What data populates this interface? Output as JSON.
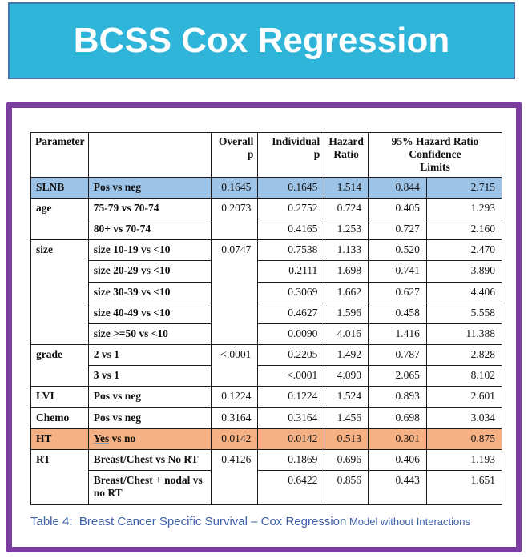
{
  "banner": {
    "title": "BCSS Cox Regression",
    "bg_color": "#2FB5D9",
    "text_color": "#FFFFFF"
  },
  "frame": {
    "border_color": "#7B3DA0"
  },
  "colors": {
    "highlight_blue": "#9DC3E6",
    "highlight_orange": "#F5B183",
    "caption_blue": "#3D5FA9"
  },
  "table": {
    "header": [
      {
        "name": "parameter",
        "label": "Parameter",
        "align": "left"
      },
      {
        "name": "contrast",
        "label": "",
        "align": "left"
      },
      {
        "name": "overall-p",
        "label": "Overall\np",
        "align": "right"
      },
      {
        "name": "individual-p",
        "label": "Individual\np",
        "align": "right"
      },
      {
        "name": "hazard-ratio",
        "label": "Hazard\nRatio",
        "align": "center"
      },
      {
        "name": "ci-limits",
        "label": "95% Hazard Ratio\nConfidence\nLimits",
        "align": "center",
        "colspan": 2
      }
    ],
    "groups": [
      {
        "parameter": "SLNB",
        "overall_p": "0.1645",
        "highlight": "#9DC3E6",
        "rows": [
          {
            "contrast": "Pos vs neg",
            "individual_p": "0.1645",
            "hazard_ratio": "1.514",
            "ci_lower": "0.844",
            "ci_upper": "2.715"
          }
        ]
      },
      {
        "parameter": "age",
        "overall_p": "0.2073",
        "rows": [
          {
            "contrast": "75-79 vs 70-74",
            "individual_p": "0.2752",
            "hazard_ratio": "0.724",
            "ci_lower": "0.405",
            "ci_upper": "1.293"
          },
          {
            "contrast": "80+ vs 70-74",
            "individual_p": "0.4165",
            "hazard_ratio": "1.253",
            "ci_lower": "0.727",
            "ci_upper": "2.160"
          }
        ]
      },
      {
        "parameter": "size",
        "overall_p": "0.0747",
        "rows": [
          {
            "contrast": "size 10-19 vs <10",
            "individual_p": "0.7538",
            "hazard_ratio": "1.133",
            "ci_lower": "0.520",
            "ci_upper": "2.470"
          },
          {
            "contrast": "size 20-29 vs <10",
            "individual_p": "0.2111",
            "hazard_ratio": "1.698",
            "ci_lower": "0.741",
            "ci_upper": "3.890"
          },
          {
            "contrast": "size 30-39 vs <10",
            "individual_p": "0.3069",
            "hazard_ratio": "1.662",
            "ci_lower": "0.627",
            "ci_upper": "4.406"
          },
          {
            "contrast": "size 40-49 vs <10",
            "individual_p": "0.4627",
            "hazard_ratio": "1.596",
            "ci_lower": "0.458",
            "ci_upper": "5.558"
          },
          {
            "contrast": "size >=50 vs <10",
            "individual_p": "0.0090",
            "hazard_ratio": "4.016",
            "ci_lower": "1.416",
            "ci_upper": "11.388"
          }
        ]
      },
      {
        "parameter": "grade",
        "overall_p": "<.0001",
        "rows": [
          {
            "contrast": "2 vs 1",
            "individual_p": "0.2205",
            "hazard_ratio": "1.492",
            "ci_lower": "0.787",
            "ci_upper": "2.828"
          },
          {
            "contrast": "3 vs 1",
            "individual_p": "<.0001",
            "hazard_ratio": "4.090",
            "ci_lower": "2.065",
            "ci_upper": "8.102"
          }
        ]
      },
      {
        "parameter": "LVI",
        "overall_p": "0.1224",
        "rows": [
          {
            "contrast": "Pos vs neg",
            "individual_p": "0.1224",
            "hazard_ratio": "1.524",
            "ci_lower": "0.893",
            "ci_upper": "2.601"
          }
        ]
      },
      {
        "parameter": "Chemo",
        "overall_p": "0.3164",
        "rows": [
          {
            "contrast": "Pos vs neg",
            "individual_p": "0.3164",
            "hazard_ratio": "1.456",
            "ci_lower": "0.698",
            "ci_upper": "3.034"
          }
        ]
      },
      {
        "parameter": "HT",
        "overall_p": "0.0142",
        "highlight": "#F5B183",
        "rows": [
          {
            "contrast": "Yes vs no",
            "underline_first_word": true,
            "individual_p": "0.0142",
            "hazard_ratio": "0.513",
            "ci_lower": "0.301",
            "ci_upper": "0.875"
          }
        ]
      },
      {
        "parameter": "RT",
        "overall_p": "0.4126",
        "rows": [
          {
            "contrast": "Breast/Chest vs No RT",
            "individual_p": "0.1869",
            "hazard_ratio": "0.696",
            "ci_lower": "0.406",
            "ci_upper": "1.193"
          },
          {
            "contrast": "Breast/Chest + nodal vs no RT",
            "individual_p": "0.6422",
            "hazard_ratio": "0.856",
            "ci_lower": "0.443",
            "ci_upper": "1.651"
          }
        ]
      }
    ]
  },
  "caption": {
    "main": "Table 4:  Breast Cancer Specific Survival – Cox Regression",
    "suffix": " Model without Interactions"
  }
}
